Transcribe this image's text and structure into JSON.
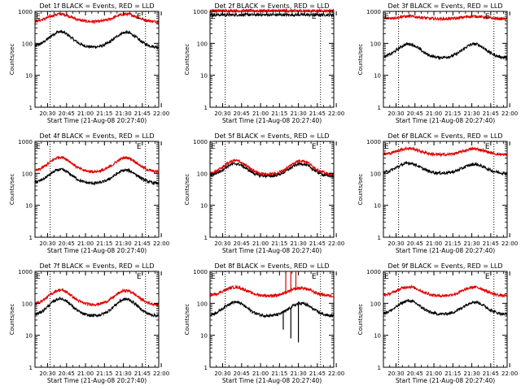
{
  "chart_data": [
    {
      "type": "line",
      "title": "Det 1f BLACK = Events, RED = LLD",
      "ylabel": "Counts/sec",
      "xlabel": "Start Time (21-Aug-08 20:27:40)",
      "x_ticks": [
        "20:30",
        "20:45",
        "21:00",
        "21:15",
        "21:30",
        "21:45",
        "22:00"
      ],
      "y_ticks": [
        "1",
        "10",
        "100",
        "1000"
      ],
      "yscale": "log",
      "ylim": [
        1,
        1000
      ],
      "x_range_min": [
        20.0,
        118.0
      ],
      "marker_left": "E",
      "marker_right": "E",
      "event_lines_min": [
        32.0,
        107.5
      ],
      "series": [
        {
          "color": "#000000",
          "baseline": 75,
          "peaks": [
            [
              40,
              230
            ],
            [
              92,
              220
            ]
          ]
        },
        {
          "color": "#e00000",
          "baseline": 470,
          "peaks": [
            [
              40,
              820
            ],
            [
              92,
              820
            ]
          ]
        }
      ]
    },
    {
      "type": "line",
      "title": "Det 2f BLACK = Events, RED = LLD",
      "ylabel": "Counts/sec",
      "xlabel": "Start Time (21-Aug-08 20:27:40)",
      "x_ticks": [
        "20:30",
        "20:45",
        "21:00",
        "21:15",
        "21:30",
        "21:45",
        "22:00"
      ],
      "y_ticks": [
        "1",
        "10",
        "100",
        "1000"
      ],
      "yscale": "log",
      "ylim": [
        1,
        1000
      ],
      "x_range_min": [
        20.0,
        118.0
      ],
      "marker_left": "E",
      "marker_right": "E",
      "event_lines_min": [
        32.0,
        107.5
      ],
      "series": [
        {
          "color": "#000000",
          "baseline": 780,
          "peaks": []
        },
        {
          "color": "#e00000",
          "baseline": 1050,
          "peaks": []
        }
      ]
    },
    {
      "type": "line",
      "title": "Det 3f BLACK = Events, RED = LLD",
      "ylabel": "Counts/sec",
      "xlabel": "Start Time (21-Aug-08 20:27:40)",
      "x_ticks": [
        "20:30",
        "20:45",
        "21:00",
        "21:15",
        "21:30",
        "21:45",
        "22:00"
      ],
      "y_ticks": [
        "1",
        "10",
        "100",
        "1000"
      ],
      "yscale": "log",
      "ylim": [
        1,
        1000
      ],
      "x_range_min": [
        20.0,
        118.0
      ],
      "marker_left": "E",
      "marker_right": "E",
      "event_lines_min": [
        32.0,
        107.5
      ],
      "series": [
        {
          "color": "#000000",
          "baseline": 35,
          "peaks": [
            [
              40,
              95
            ],
            [
              92,
              95
            ]
          ]
        },
        {
          "color": "#e00000",
          "baseline": 580,
          "peaks": [
            [
              40,
              700
            ],
            [
              92,
              700
            ]
          ]
        }
      ]
    },
    {
      "type": "line",
      "title": "Det 4f BLACK = Events, RED = LLD",
      "ylabel": "Counts/sec",
      "xlabel": "Start Time (21-Aug-08 20:27:40)",
      "x_ticks": [
        "20:30",
        "20:45",
        "21:00",
        "21:15",
        "21:30",
        "21:45",
        "22:00"
      ],
      "y_ticks": [
        "1",
        "10",
        "100",
        "1000"
      ],
      "yscale": "log",
      "ylim": [
        1,
        1000
      ],
      "x_range_min": [
        20.0,
        118.0
      ],
      "marker_left": "E",
      "marker_right": "E",
      "event_lines_min": [
        32.0,
        107.5
      ],
      "series": [
        {
          "color": "#000000",
          "baseline": 48,
          "peaks": [
            [
              40,
              130
            ],
            [
              92,
              125
            ]
          ]
        },
        {
          "color": "#e00000",
          "baseline": 110,
          "peaks": [
            [
              40,
              320
            ],
            [
              92,
              310
            ]
          ]
        }
      ]
    },
    {
      "type": "line",
      "title": "Det 5f BLACK = Events, RED = LLD",
      "ylabel": "Counts/sec",
      "xlabel": "Start Time (21-Aug-08 20:27:40)",
      "x_ticks": [
        "20:30",
        "20:45",
        "21:00",
        "21:15",
        "21:30",
        "21:45",
        "22:00"
      ],
      "y_ticks": [
        "1",
        "10",
        "100",
        "1000"
      ],
      "yscale": "log",
      "ylim": [
        1,
        1000
      ],
      "x_range_min": [
        20.0,
        118.0
      ],
      "marker_left": "E",
      "marker_right": "E",
      "event_lines_min": [
        32.0,
        107.5
      ],
      "series": [
        {
          "color": "#000000",
          "baseline": 80,
          "peaks": [
            [
              40,
              200
            ],
            [
              92,
              200
            ]
          ]
        },
        {
          "color": "#e00000",
          "baseline": 92,
          "peaks": [
            [
              40,
              250
            ],
            [
              92,
              250
            ]
          ]
        }
      ]
    },
    {
      "type": "line",
      "title": "Det 6f BLACK = Events, RED = LLD",
      "ylabel": "Counts/sec",
      "xlabel": "Start Time (21-Aug-08 20:27:40)",
      "x_ticks": [
        "20:30",
        "20:45",
        "21:00",
        "21:15",
        "21:30",
        "21:45",
        "22:00"
      ],
      "y_ticks": [
        "1",
        "10",
        "100",
        "1000"
      ],
      "yscale": "log",
      "ylim": [
        1,
        1000
      ],
      "x_range_min": [
        20.0,
        118.0
      ],
      "marker_left": "E",
      "marker_right": "E",
      "event_lines_min": [
        32.0,
        107.5
      ],
      "series": [
        {
          "color": "#000000",
          "baseline": 100,
          "peaks": [
            [
              40,
              210
            ],
            [
              92,
              190
            ]
          ]
        },
        {
          "color": "#e00000",
          "baseline": 380,
          "peaks": [
            [
              40,
              600
            ],
            [
              92,
              580
            ]
          ]
        }
      ]
    },
    {
      "type": "line",
      "title": "Det 7f BLACK = Events, RED = LLD",
      "ylabel": "Counts/sec",
      "xlabel": "Start Time (21-Aug-08 20:27:40)",
      "x_ticks": [
        "20:30",
        "20:45",
        "21:00",
        "21:15",
        "21:30",
        "21:45",
        "22:00"
      ],
      "y_ticks": [
        "1",
        "10",
        "100",
        "1000"
      ],
      "yscale": "log",
      "ylim": [
        1,
        1000
      ],
      "x_range_min": [
        20.0,
        118.0
      ],
      "marker_left": "E",
      "marker_right": "E",
      "event_lines_min": [
        32.0,
        107.5
      ],
      "series": [
        {
          "color": "#000000",
          "baseline": 40,
          "peaks": [
            [
              40,
              140
            ],
            [
              92,
              135
            ]
          ]
        },
        {
          "color": "#e00000",
          "baseline": 90,
          "peaks": [
            [
              40,
              260
            ],
            [
              92,
              250
            ]
          ]
        }
      ]
    },
    {
      "type": "line",
      "title": "Det 8f BLACK = Events, RED = LLD",
      "ylabel": "Counts/sec",
      "xlabel": "Start Time (21-Aug-08 20:27:40)",
      "x_ticks": [
        "20:30",
        "20:45",
        "21:00",
        "21:15",
        "21:30",
        "21:45",
        "22:00"
      ],
      "y_ticks": [
        "1",
        "10",
        "100",
        "1000"
      ],
      "yscale": "log",
      "ylim": [
        1,
        1000
      ],
      "x_range_min": [
        20.0,
        118.0
      ],
      "marker_left": "E",
      "marker_right": "E",
      "event_lines_min": [
        32.0,
        107.5
      ],
      "series": [
        {
          "color": "#000000",
          "baseline": 40,
          "peaks": [
            [
              40,
              110
            ],
            [
              92,
              100
            ]
          ],
          "spikes": [
            [
              78,
              15
            ],
            [
              84,
              8
            ],
            [
              90,
              6
            ]
          ]
        },
        {
          "color": "#e00000",
          "baseline": 170,
          "peaks": [
            [
              40,
              320
            ],
            [
              92,
              300
            ]
          ],
          "spikes": [
            [
              80,
              1000
            ],
            [
              84,
              1000
            ],
            [
              88,
              1000
            ]
          ]
        }
      ]
    },
    {
      "type": "line",
      "title": "Det 9f BLACK = Events, RED = LLD",
      "ylabel": "Counts/sec",
      "xlabel": "Start Time (21-Aug-08 20:27:40)",
      "x_ticks": [
        "20:30",
        "20:45",
        "21:00",
        "21:15",
        "21:30",
        "21:45",
        "22:00"
      ],
      "y_ticks": [
        "1",
        "10",
        "100",
        "1000"
      ],
      "yscale": "log",
      "ylim": [
        1,
        1000
      ],
      "x_range_min": [
        20.0,
        118.0
      ],
      "marker_left": "E",
      "marker_right": "E",
      "event_lines_min": [
        32.0,
        107.5
      ],
      "series": [
        {
          "color": "#000000",
          "baseline": 45,
          "peaks": [
            [
              40,
              120
            ],
            [
              92,
              110
            ]
          ]
        },
        {
          "color": "#e00000",
          "baseline": 170,
          "peaks": [
            [
              40,
              330
            ],
            [
              92,
              320
            ]
          ]
        }
      ]
    }
  ]
}
